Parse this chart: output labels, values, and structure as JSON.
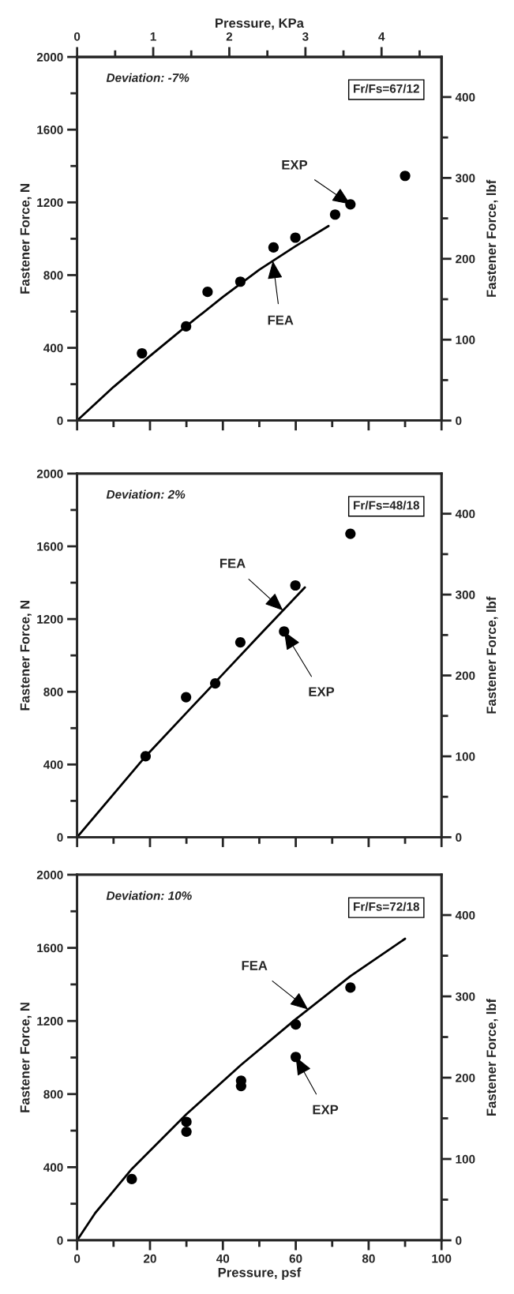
{
  "chart_data": [
    {
      "type": "scatter",
      "xlim": [
        0,
        100
      ],
      "xticks": [
        0,
        {
          "value": 10,
          "label": null
        },
        20,
        {
          "value": 30,
          "label": null
        },
        40,
        {
          "value": 50,
          "label": null
        },
        60,
        {
          "value": 70,
          "label": null
        },
        80,
        {
          "value": 90,
          "label": null
        },
        100
      ],
      "x2label": "Pressure, KPa",
      "x2lim": [
        0,
        4.788
      ],
      "x2ticks": [
        0,
        {
          "value": 0.5,
          "label": null
        },
        1,
        {
          "value": 1.5,
          "label": null
        },
        2,
        {
          "value": 2.5,
          "label": null
        },
        3,
        {
          "value": 3.5,
          "label": null
        },
        4,
        {
          "value": 4.5,
          "label": null
        }
      ],
      "ylabel": "Fastener Force, N",
      "ylim": [
        0,
        2000
      ],
      "yticks": [
        0,
        {
          "value": 200,
          "label": null
        },
        400,
        {
          "value": 600,
          "label": null
        },
        800,
        {
          "value": 1000,
          "label": null
        },
        1200,
        {
          "value": 1400,
          "label": null
        },
        1600,
        {
          "value": 1800,
          "label": null
        },
        2000
      ],
      "y2label": "Fastener Force, lbf",
      "y2lim": [
        0,
        449.6
      ],
      "y2ticks": [
        0,
        {
          "value": 50,
          "label": null
        },
        100,
        {
          "value": 150,
          "label": null
        },
        200,
        {
          "value": 250,
          "label": null
        },
        300,
        {
          "value": 350,
          "label": null
        },
        400
      ],
      "tick_labels": "y",
      "series": [
        {
          "color": "#000000",
          "marker": "circle",
          "x": [
            17.8,
            29.9,
            35.8,
            44.8,
            53.9,
            59.9,
            70.8,
            75.0,
            90.0
          ],
          "values": [
            370,
            518,
            708,
            764,
            952,
            1006,
            1133,
            1189,
            1346
          ]
        },
        {
          "type": "line",
          "color": "#000000",
          "line_style": "solid",
          "x": [
            0,
            10,
            20,
            30,
            40,
            50,
            60,
            69
          ],
          "values": [
            0,
            185,
            355,
            520,
            680,
            830,
            960,
            1070
          ]
        }
      ],
      "annotations": [
        "Deviation: -7%",
        "Fr/Fs=67/12",
        {
          "text": "EXP",
          "x": 75.0,
          "y": 1189
        },
        {
          "text": "FEA",
          "x": 53.7,
          "y": 878
        }
      ]
    },
    {
      "type": "scatter",
      "xlim": [
        0,
        100
      ],
      "xticks": [
        0,
        {
          "value": 10,
          "label": null
        },
        20,
        {
          "value": 30,
          "label": null
        },
        40,
        {
          "value": 50,
          "label": null
        },
        60,
        {
          "value": 70,
          "label": null
        },
        80,
        {
          "value": 90,
          "label": null
        },
        100
      ],
      "ylabel": "Fastener Force, N",
      "ylim": [
        0,
        2000
      ],
      "yticks": [
        0,
        {
          "value": 200,
          "label": null
        },
        400,
        {
          "value": 600,
          "label": null
        },
        800,
        {
          "value": 1000,
          "label": null
        },
        1200,
        {
          "value": 1400,
          "label": null
        },
        1600,
        {
          "value": 1800,
          "label": null
        },
        2000
      ],
      "y2label": "Fastener Force, lbf",
      "y2lim": [
        0,
        449.6
      ],
      "y2ticks": [
        0,
        {
          "value": 50,
          "label": null
        },
        100,
        {
          "value": 150,
          "label": null
        },
        200,
        {
          "value": 250,
          "label": null
        },
        300,
        {
          "value": 350,
          "label": null
        },
        400
      ],
      "tick_labels": "y",
      "series": [
        {
          "color": "#000000",
          "marker": "circle",
          "x": [
            18.8,
            29.9,
            37.9,
            44.8,
            56.8,
            59.9,
            75.0
          ],
          "values": [
            445,
            770,
            846,
            1072,
            1132,
            1385,
            1669
          ]
        },
        {
          "type": "line",
          "color": "#000000",
          "line_style": "solid",
          "x": [
            0,
            10,
            18.8,
            30,
            40,
            50,
            62.5
          ],
          "values": [
            0,
            237,
            445,
            684,
            897,
            1110,
            1374
          ]
        }
      ],
      "annotations": [
        "Deviation: 2%",
        "Fr/Fs=48/18",
        {
          "text": "FEA",
          "x": 56.5,
          "y": 1247
        },
        {
          "text": "EXP",
          "x": 56.8,
          "y": 1132
        }
      ]
    },
    {
      "type": "scatter",
      "xlabel": "Pressure, psf",
      "xlim": [
        0,
        100
      ],
      "xticks": [
        0,
        {
          "value": 10,
          "label": null
        },
        20,
        {
          "value": 30,
          "label": null
        },
        40,
        {
          "value": 50,
          "label": null
        },
        60,
        {
          "value": 70,
          "label": null
        },
        80,
        {
          "value": 90,
          "label": null
        },
        100
      ],
      "ylabel": "Fastener Force, N",
      "ylim": [
        0,
        2000
      ],
      "yticks": [
        0,
        {
          "value": 200,
          "label": null
        },
        400,
        {
          "value": 600,
          "label": null
        },
        800,
        {
          "value": 1000,
          "label": null
        },
        1200,
        {
          "value": 1400,
          "label": null
        },
        1600,
        {
          "value": 1800,
          "label": null
        },
        2000
      ],
      "y2label": "Fastener Force, lbf",
      "y2lim": [
        0,
        449.6
      ],
      "y2ticks": [
        0,
        {
          "value": 50,
          "label": null
        },
        100,
        {
          "value": 150,
          "label": null
        },
        200,
        {
          "value": 250,
          "label": null
        },
        300,
        {
          "value": 350,
          "label": null
        },
        400
      ],
      "series": [
        {
          "color": "#000000",
          "marker": "circle",
          "x": [
            15,
            30,
            30,
            45,
            45,
            60,
            60,
            75
          ],
          "values": [
            335,
            648,
            594,
            873,
            844,
            1181,
            1003,
            1383
          ]
        },
        {
          "type": "line",
          "color": "#000000",
          "line_style": "solid",
          "x": [
            0,
            5,
            15,
            30,
            45,
            60,
            75,
            90
          ],
          "values": [
            0,
            150,
            390,
            690,
            960,
            1210,
            1445,
            1650
          ]
        }
      ],
      "annotations": [
        "Deviation: 10%",
        "Fr/Fs=72/18",
        {
          "text": "FEA",
          "x": 63.4,
          "y": 1263
        },
        {
          "text": "EXP",
          "x": 60,
          "y": 1003
        }
      ]
    }
  ]
}
